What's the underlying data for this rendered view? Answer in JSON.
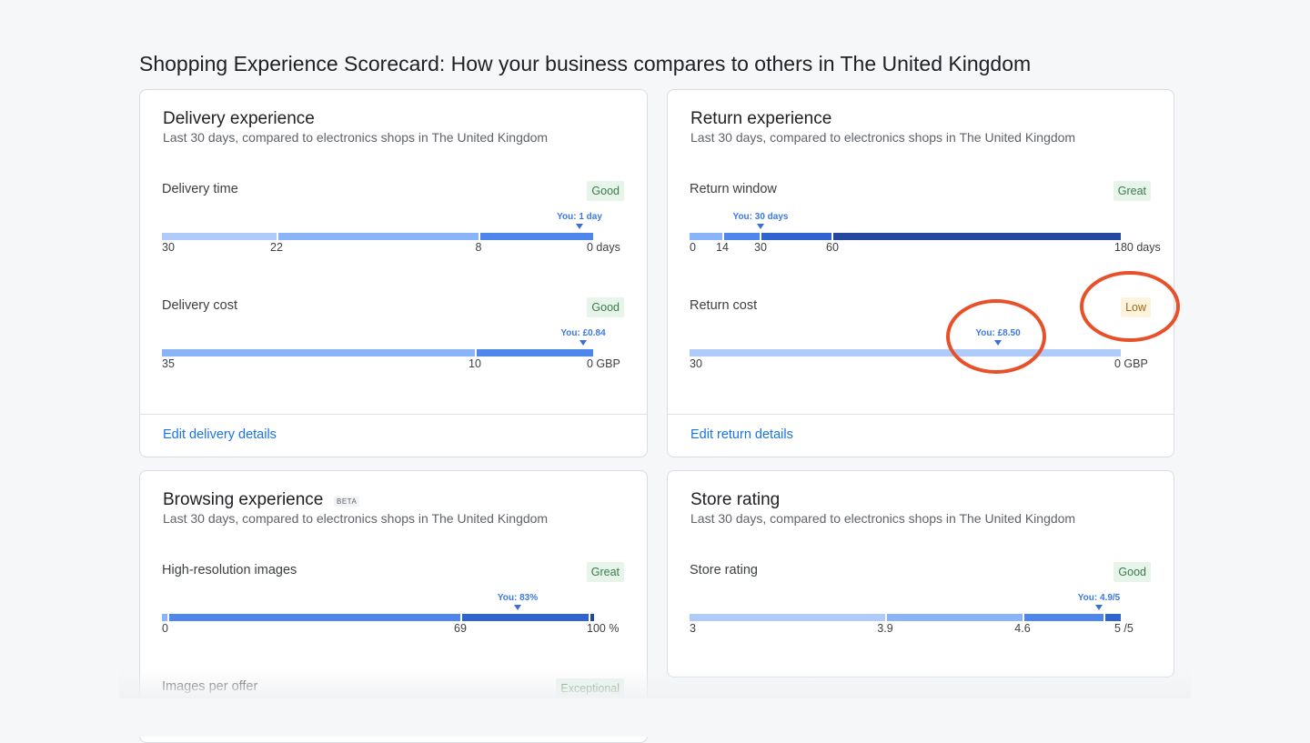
{
  "page_title": "Shopping Experience Scorecard: How your business compares to others in The United Kingdom",
  "colors": {
    "accent": "#1a73e8",
    "annotation": "#e8502a",
    "good_badge": "#e6f4ea",
    "low_badge": "#fef3dc"
  },
  "cards": {
    "delivery": {
      "title": "Delivery experience",
      "subtitle": "Last 30 days, compared to electronics shops in The United Kingdom",
      "edit_link": "Edit delivery details",
      "metrics": [
        {
          "label": "Delivery time",
          "rating": "Good",
          "you": "You: 1 day",
          "you_value": 1,
          "ticks": [
            "30",
            "22",
            "8",
            "0 days"
          ]
        },
        {
          "label": "Delivery cost",
          "rating": "Good",
          "you": "You: £0.84",
          "you_value": 0.84,
          "ticks": [
            "35",
            "10",
            "0 GBP"
          ]
        }
      ]
    },
    "return": {
      "title": "Return experience",
      "subtitle": "Last 30 days, compared to electronics shops in The United Kingdom",
      "edit_link": "Edit return details",
      "metrics": [
        {
          "label": "Return window",
          "rating": "Great",
          "you": "You: 30 days",
          "you_value": 30,
          "ticks": [
            "0",
            "14",
            "30",
            "60",
            "180 days"
          ]
        },
        {
          "label": "Return cost",
          "rating": "Low",
          "you": "You: £8.50",
          "you_value": 8.5,
          "ticks": [
            "30",
            "0 GBP"
          ]
        }
      ]
    },
    "browsing": {
      "title": "Browsing experience",
      "badge": "BETA",
      "subtitle": "Last 30 days, compared to electronics shops in The United Kingdom",
      "metrics": [
        {
          "label": "High-resolution images",
          "rating": "Great",
          "you": "You: 83%",
          "you_value": 83,
          "ticks": [
            "0",
            "69",
            "100 %"
          ]
        },
        {
          "label": "Images per offer",
          "rating": "Exceptional"
        }
      ]
    },
    "store": {
      "title": "Store rating",
      "subtitle": "Last 30 days, compared to electronics shops in The United Kingdom",
      "metrics": [
        {
          "label": "Store rating",
          "rating": "Good",
          "you": "You: 4.9/5",
          "you_value": 4.9,
          "ticks": [
            "3",
            "3.9",
            "4.6",
            "5 /5"
          ]
        }
      ]
    }
  }
}
